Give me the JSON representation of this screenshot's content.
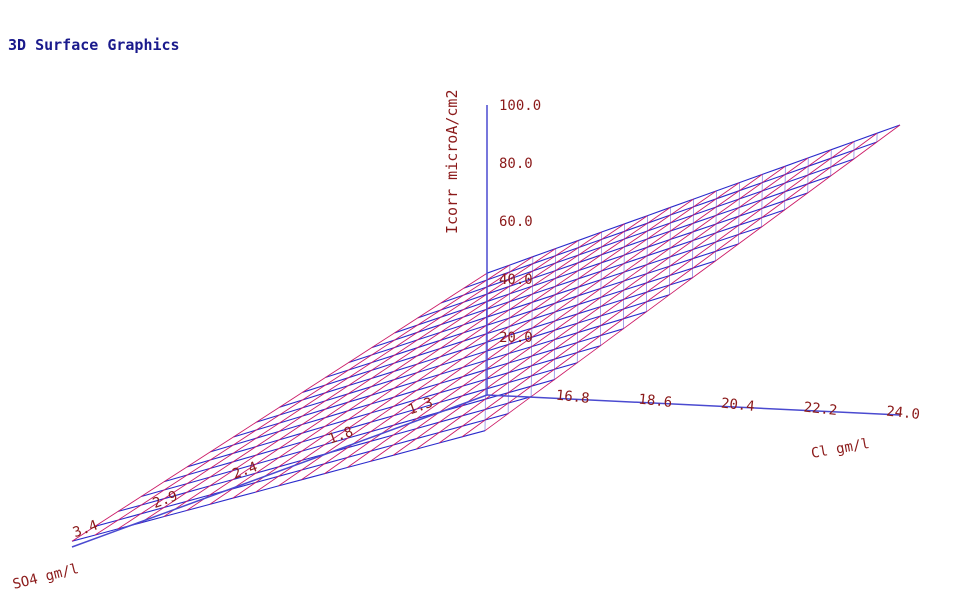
{
  "title": "3D Surface Graphics",
  "colors": {
    "axis": "#4a4ad0",
    "label": "#8b1a1a",
    "mesh_a": "#2a2acc",
    "mesh_b": "#cc1a66",
    "title": "#1a1a8c"
  },
  "chart_data": {
    "type": "surface",
    "title": "3D Surface Graphics",
    "zlabel": "Icorr microA/cm2",
    "xlabel": "Cl gm/l",
    "ylabel": "SO4 gm/l",
    "z_ticks": [
      "20.0",
      "40.0",
      "60.0",
      "80.0",
      "100.0"
    ],
    "x_ticks": [
      "16.8",
      "18.6",
      "20.4",
      "22.2",
      "24.0"
    ],
    "y_ticks": [
      "1.3",
      "1.8",
      "2.4",
      "2.9",
      "3.4"
    ],
    "x_range": [
      15.0,
      24.0
    ],
    "y_range": [
      0.8,
      3.4
    ],
    "z_range": [
      0,
      100
    ],
    "surface_corners": {
      "cl_24_so4_0.8": 100,
      "cl_15_so4_0.8": 42,
      "cl_24_so4_3.4": 47,
      "cl_15_so4_3.4": 2
    },
    "grid": false
  }
}
